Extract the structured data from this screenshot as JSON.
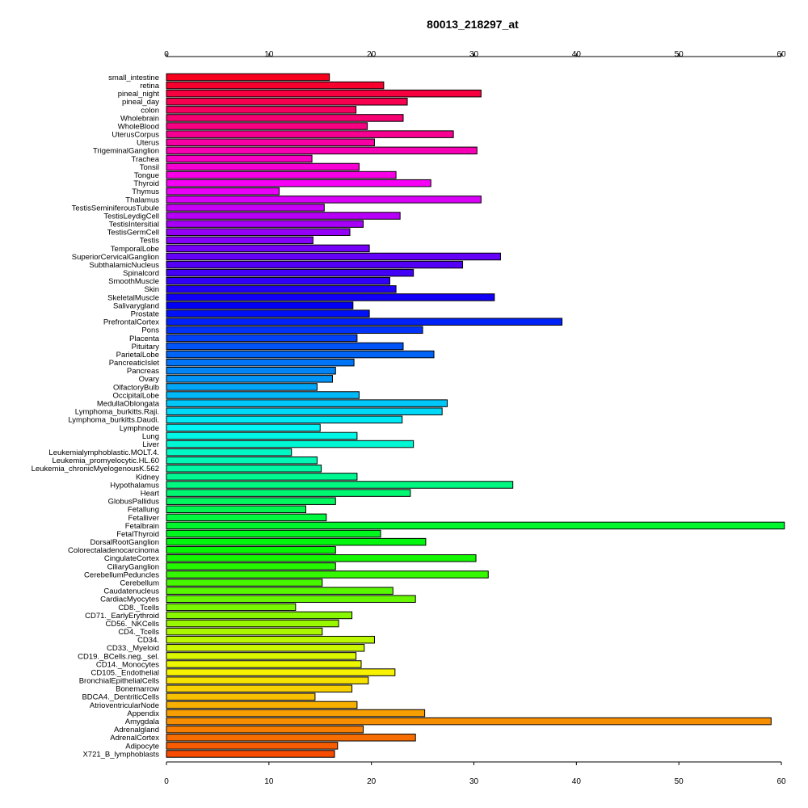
{
  "chart_data": {
    "type": "bar",
    "orientation": "horizontal",
    "title": "80013_218297_at",
    "xlabel": "",
    "ylabel": "",
    "xlim": [
      0,
      60
    ],
    "x_ticks": [
      0,
      10,
      20,
      30,
      40,
      50,
      60
    ],
    "axes": "top-and-bottom",
    "grid": false,
    "legend": "none",
    "color_scheme": "rainbow",
    "categories": [
      "small_intestine",
      "retina",
      "pineal_night",
      "pineal_day",
      "colon",
      "Wholebrain",
      "WholeBlood",
      "UterusCorpus",
      "Uterus",
      "TrigeminalGanglion",
      "Trachea",
      "Tonsil",
      "Tongue",
      "Thyroid",
      "Thymus",
      "Thalamus",
      "TestisSeminiferousTubule",
      "TestisLeydigCell",
      "TestisIntersitial",
      "TestisGermCell",
      "Testis",
      "TemporalLobe",
      "SuperiorCervicalGanglion",
      "SubthalamicNucleus",
      "Spinalcord",
      "SmoothMuscle",
      "Skin",
      "SkeletalMuscle",
      "Salivarygland",
      "Prostate",
      "PrefrontalCortex",
      "Pons",
      "Placenta",
      "Pituitary",
      "ParietalLobe",
      "PancreaticIslet",
      "Pancreas",
      "Ovary",
      "OlfactoryBulb",
      "OccipitalLobe",
      "MedullaOblongata",
      "Lymphoma_burkitts.Raji.",
      "Lymphoma_burkitts.Daudi.",
      "Lymphnode",
      "Lung",
      "Liver",
      "Leukemialymphoblastic.MOLT.4.",
      "Leukemia_promyelocytic.HL.60",
      "Leukemia_chronicMyelogenousK.562",
      "Kidney",
      "Hypothalamus",
      "Heart",
      "GlobusPallidus",
      "Fetallung",
      "Fetalliver",
      "Fetalbrain",
      "FetalThyroid",
      "DorsalRootGanglion",
      "Colorectaladenocarcinoma",
      "CingulateCortex",
      "CiliaryGanglion",
      "CerebellumPeduncles",
      "Cerebellum",
      "Caudatenucleus",
      "CardiacMyocytes",
      "CD8._Tcells",
      "CD71._EarlyErythroid",
      "CD56._NKCells",
      "CD4._Tcells",
      "CD34.",
      "CD33._Myeloid",
      "CD19._BCells.neg._sel.",
      "CD14._Monocytes",
      "CD105._Endothelial",
      "BronchialEpithelialCells",
      "Bonemarrow",
      "BDCA4._DentriticCells",
      "AtrioventricularNode",
      "Appendix",
      "Amygdala",
      "Adrenalgland",
      "AdrenalCortex",
      "Adipocyte",
      "X721_B_lymphoblasts"
    ],
    "values": [
      15.9,
      21.2,
      30.7,
      23.5,
      18.5,
      23.1,
      19.6,
      28.0,
      20.3,
      30.3,
      14.2,
      18.8,
      22.4,
      25.8,
      11.0,
      30.7,
      15.4,
      22.8,
      19.2,
      17.9,
      14.3,
      19.8,
      32.6,
      28.9,
      24.1,
      21.8,
      22.4,
      32.0,
      18.2,
      19.8,
      38.6,
      25.0,
      18.6,
      23.1,
      26.1,
      18.3,
      16.5,
      16.2,
      14.7,
      18.8,
      27.4,
      26.9,
      23.0,
      15.0,
      18.6,
      24.1,
      12.2,
      14.7,
      15.1,
      18.6,
      33.8,
      23.8,
      16.5,
      13.6,
      15.6,
      60.3,
      20.9,
      25.3,
      16.5,
      30.2,
      16.5,
      31.4,
      15.2,
      22.1,
      24.3,
      12.6,
      18.1,
      16.8,
      15.2,
      20.3,
      19.3,
      18.5,
      19.0,
      22.3,
      19.7,
      18.1,
      14.5,
      18.6,
      25.2,
      59.0,
      19.2,
      24.3,
      16.7,
      16.4
    ]
  }
}
